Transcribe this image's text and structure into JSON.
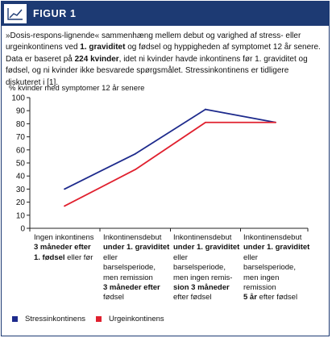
{
  "figure": {
    "label": "FIGUR 1",
    "caption_parts": [
      {
        "text": "»Dosis-respons-lignende« sammenhæng mellem debut og varighed af stress- eller urgeinkontinens ved ",
        "bold": false
      },
      {
        "text": "1. graviditet",
        "bold": true
      },
      {
        "text": " og fødsel og hyppigheden af symptomet 12 år senere. Data er baseret på ",
        "bold": false
      },
      {
        "text": "224 kvinder",
        "bold": true
      },
      {
        "text": ", idet ni kvinder havde inkontinens før 1. graviditet og fødsel, og ni kvinder ikke besvarede spørgsmålet. Stressinkontinens er tidligere diskuteret i [1].",
        "bold": false
      }
    ]
  },
  "chart_data": {
    "type": "line",
    "ylabel": "% kvinder med symptomer 12 år senere",
    "ylim": [
      0,
      100
    ],
    "yticks": [
      0,
      10,
      20,
      30,
      40,
      50,
      60,
      70,
      80,
      90,
      100
    ],
    "grid": false,
    "categories": [
      [
        {
          "t": "Ingen inkontinens",
          "b": false
        },
        {
          "t": "3 måneder efter",
          "b": true
        },
        {
          "t": "1. fødsel",
          "b": true
        },
        {
          "t": " eller før",
          "b": false
        }
      ],
      [
        {
          "t": "Inkontinensdebut",
          "b": false
        },
        {
          "t": "under 1. graviditet",
          "b": true
        },
        {
          "t": "eller barselsperiode,",
          "b": false
        },
        {
          "t": "men remission",
          "b": false
        },
        {
          "t": "3 måneder efter",
          "b": true
        },
        {
          "t": "fødsel",
          "b": false
        }
      ],
      [
        {
          "t": "Inkontinensdebut",
          "b": false
        },
        {
          "t": "under 1. graviditet",
          "b": true
        },
        {
          "t": "eller barselsperiode,",
          "b": false
        },
        {
          "t": "men ingen remis-",
          "b": false
        },
        {
          "t": "sion 3 måneder",
          "b": true
        },
        {
          "t": "efter fødsel",
          "b": false
        }
      ],
      [
        {
          "t": "Inkontinensdebut",
          "b": false
        },
        {
          "t": "under 1. graviditet",
          "b": true
        },
        {
          "t": "eller barselsperiode,",
          "b": false
        },
        {
          "t": "men ingen remission",
          "b": false
        },
        {
          "t": "5 år",
          "b": true
        },
        {
          "t": " efter fødsel",
          "b": false
        }
      ]
    ],
    "series": [
      {
        "name": "Stressinkontinens",
        "color": "#1d2a8c",
        "values": [
          30,
          57,
          91,
          81
        ]
      },
      {
        "name": "Urgeinkontinens",
        "color": "#e0202e",
        "values": [
          17,
          45,
          81,
          81
        ]
      }
    ],
    "legend_position": "bottom"
  }
}
